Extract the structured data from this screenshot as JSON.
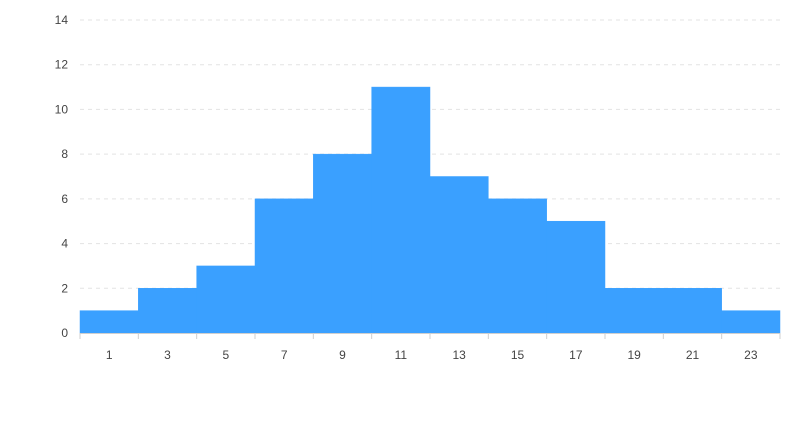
{
  "chart_data": {
    "type": "bar",
    "title": "",
    "xlabel": "",
    "ylabel": "",
    "bins": [
      {
        "x0": 0,
        "x1": 2,
        "count": 1
      },
      {
        "x0": 2,
        "x1": 4,
        "count": 2
      },
      {
        "x0": 4,
        "x1": 6,
        "count": 3
      },
      {
        "x0": 6,
        "x1": 8,
        "count": 6
      },
      {
        "x0": 8,
        "x1": 10,
        "count": 8
      },
      {
        "x0": 10,
        "x1": 12,
        "count": 11
      },
      {
        "x0": 12,
        "x1": 14,
        "count": 7
      },
      {
        "x0": 14,
        "x1": 16,
        "count": 6
      },
      {
        "x0": 16,
        "x1": 18,
        "count": 5
      },
      {
        "x0": 18,
        "x1": 20,
        "count": 2
      },
      {
        "x0": 20,
        "x1": 22,
        "count": 2
      },
      {
        "x0": 22,
        "x1": 24,
        "count": 1
      }
    ],
    "x_tick_labels": [
      "1",
      "3",
      "5",
      "7",
      "9",
      "11",
      "13",
      "15",
      "17",
      "19",
      "21",
      "23"
    ],
    "y_ticks": [
      0,
      2,
      4,
      6,
      8,
      10,
      12,
      14
    ],
    "xlim": [
      0,
      24
    ],
    "ylim": [
      0,
      14
    ],
    "grid": true,
    "bar_color": "#3aa0ff"
  }
}
